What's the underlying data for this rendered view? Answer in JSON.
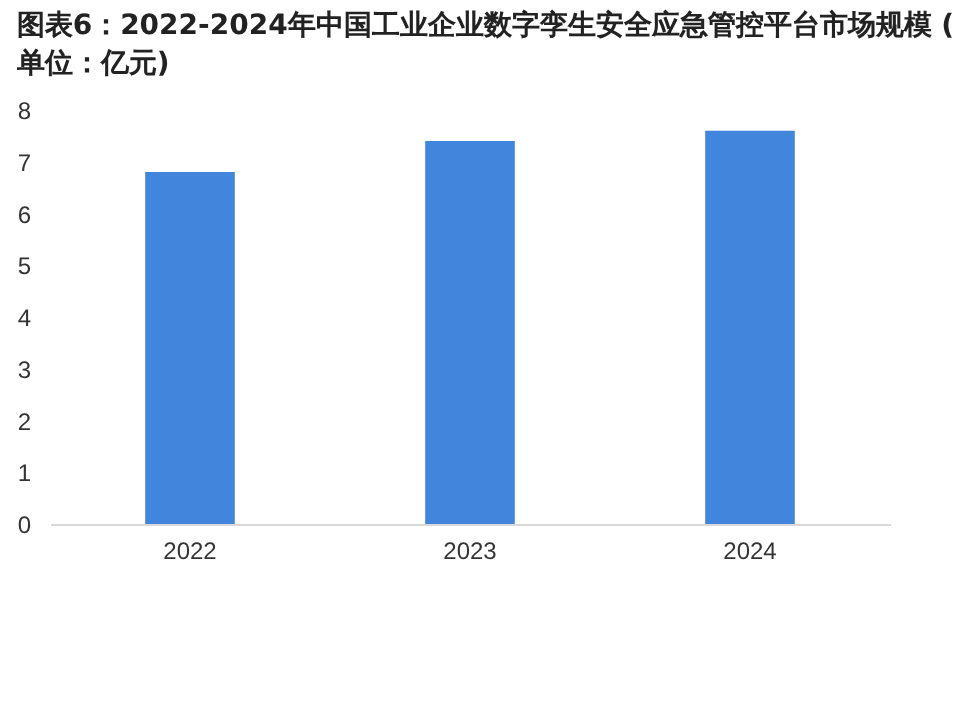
{
  "chart_data": {
    "type": "bar",
    "title": "图表6：2022-2024年中国工业企业数字孪生安全应急管控平台市场规模 (单位：亿元)",
    "categories": [
      "2022",
      "2023",
      "2024"
    ],
    "values": [
      6.8,
      7.4,
      7.6
    ],
    "color": "#4285dc",
    "ylim": [
      0,
      8
    ],
    "yticks": [
      0,
      1,
      2,
      3,
      4,
      5,
      6,
      7,
      8
    ],
    "grid": false
  }
}
